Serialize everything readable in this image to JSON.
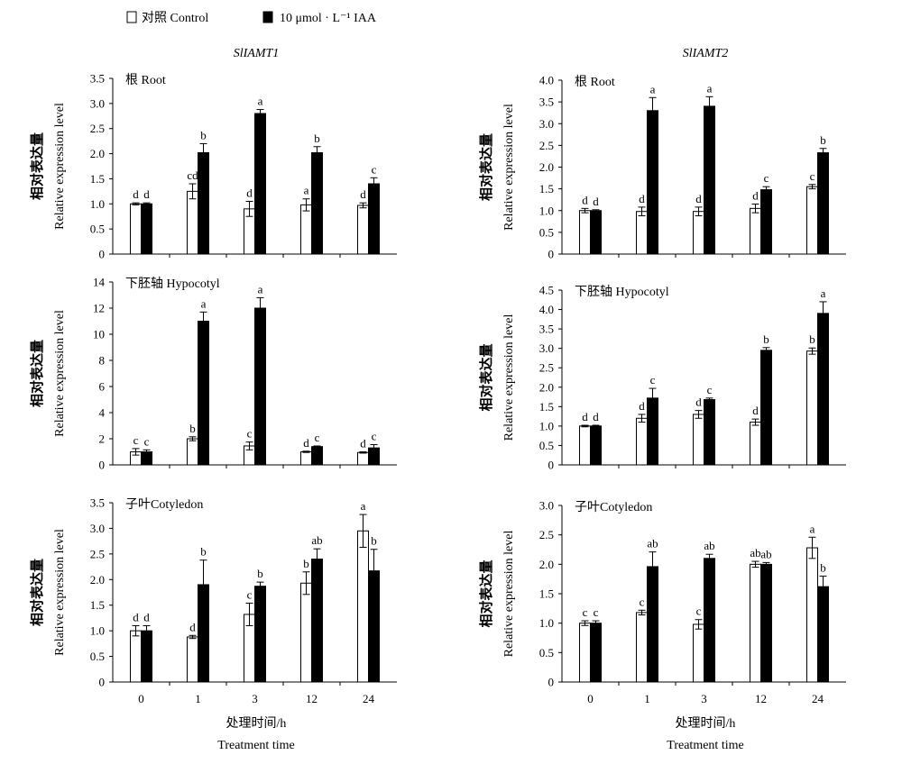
{
  "legend": [
    {
      "label": "对照 Control",
      "fill": "#ffffff"
    },
    {
      "label": "10 μmol · L⁻¹ IAA",
      "fill": "#000000"
    }
  ],
  "columns": [
    {
      "gene": "SlIAMT1"
    },
    {
      "gene": "SlIAMT2"
    }
  ],
  "ylabel_cn": "相对表达量",
  "ylabel_en": "Relative expression level",
  "xlabel_cn": "处理时间/h",
  "xlabel_en": "Treatment time",
  "colors": {
    "control": "#ffffff",
    "iaa": "#000000",
    "axis": "#000000"
  },
  "chart_data": [
    {
      "type": "bar",
      "gene": "SlIAMT1",
      "tissue": "根 Root",
      "categories": [
        "0",
        "1",
        "3",
        "12",
        "24"
      ],
      "ylim": [
        0,
        3.5
      ],
      "yticks": [
        "0",
        "0.5",
        "1.0",
        "1.5",
        "2.0",
        "2.5",
        "3.0",
        "3.5"
      ],
      "series": [
        {
          "name": "对照 Control",
          "values": [
            1.0,
            1.25,
            0.9,
            0.98,
            0.97
          ],
          "errors": [
            0.02,
            0.15,
            0.15,
            0.12,
            0.05
          ],
          "labels": [
            "d",
            "cd",
            "d",
            "a",
            "d"
          ]
        },
        {
          "name": "10 μmol · L⁻¹ IAA",
          "values": [
            1.0,
            2.02,
            2.8,
            2.02,
            1.4
          ],
          "errors": [
            0.02,
            0.18,
            0.08,
            0.12,
            0.12
          ],
          "labels": [
            "d",
            "b",
            "a",
            "b",
            "c"
          ]
        }
      ]
    },
    {
      "type": "bar",
      "gene": "SlIAMT2",
      "tissue": "根 Root",
      "categories": [
        "0",
        "1",
        "3",
        "12",
        "24"
      ],
      "ylim": [
        0,
        4.0
      ],
      "yticks": [
        "0",
        "0.5",
        "1.0",
        "1.5",
        "2.0",
        "2.5",
        "3.0",
        "3.5",
        "4.0"
      ],
      "series": [
        {
          "name": "对照 Control",
          "values": [
            1.0,
            0.98,
            0.98,
            1.05,
            1.55
          ],
          "errors": [
            0.05,
            0.1,
            0.1,
            0.1,
            0.05
          ],
          "labels": [
            "d",
            "d",
            "d",
            "d",
            "c"
          ]
        },
        {
          "name": "10 μmol · L⁻¹ IAA",
          "values": [
            1.0,
            3.3,
            3.4,
            1.48,
            2.33
          ],
          "errors": [
            0.02,
            0.3,
            0.22,
            0.07,
            0.1
          ],
          "labels": [
            "d",
            "a",
            "a",
            "c",
            "b"
          ]
        }
      ]
    },
    {
      "type": "bar",
      "gene": "SlIAMT1",
      "tissue": "下胚轴 Hypocotyl",
      "categories": [
        "0",
        "1",
        "3",
        "12",
        "24"
      ],
      "ylim": [
        0,
        14
      ],
      "yticks": [
        "0",
        "2",
        "4",
        "6",
        "8",
        "10",
        "12",
        "14"
      ],
      "series": [
        {
          "name": "对照 Control",
          "values": [
            1.0,
            2.0,
            1.45,
            1.0,
            0.95
          ],
          "errors": [
            0.25,
            0.15,
            0.3,
            0.05,
            0.05
          ],
          "labels": [
            "c",
            "b",
            "c",
            "d",
            "d"
          ]
        },
        {
          "name": "10 μmol · L⁻¹ IAA",
          "values": [
            1.0,
            11.0,
            12.0,
            1.4,
            1.3
          ],
          "errors": [
            0.15,
            0.7,
            0.8,
            0.05,
            0.25
          ],
          "labels": [
            "c",
            "a",
            "a",
            "c",
            "c"
          ]
        }
      ]
    },
    {
      "type": "bar",
      "gene": "SlIAMT2",
      "tissue": "下胚轴 Hypocotyl",
      "categories": [
        "0",
        "1",
        "3",
        "12",
        "24"
      ],
      "ylim": [
        0,
        4.5
      ],
      "yticks": [
        "0",
        "0.5",
        "1.0",
        "1.5",
        "2.0",
        "2.5",
        "3.0",
        "3.5",
        "4.0",
        "4.5"
      ],
      "series": [
        {
          "name": "对照 Control",
          "values": [
            1.0,
            1.2,
            1.3,
            1.1,
            2.93
          ],
          "errors": [
            0.02,
            0.1,
            0.1,
            0.08,
            0.08
          ],
          "labels": [
            "d",
            "d",
            "d",
            "d",
            "b"
          ]
        },
        {
          "name": "10 μmol · L⁻¹ IAA",
          "values": [
            1.0,
            1.72,
            1.68,
            2.95,
            3.9
          ],
          "errors": [
            0.02,
            0.25,
            0.04,
            0.07,
            0.3
          ],
          "labels": [
            "d",
            "c",
            "c",
            "b",
            "a"
          ]
        }
      ]
    },
    {
      "type": "bar",
      "gene": "SlIAMT1",
      "tissue": "子叶Cotyledon",
      "categories": [
        "0",
        "1",
        "3",
        "12",
        "24"
      ],
      "ylim": [
        0,
        3.5
      ],
      "yticks": [
        "0",
        "0.5",
        "1.0",
        "1.5",
        "2.0",
        "2.5",
        "3.0",
        "3.5"
      ],
      "series": [
        {
          "name": "对照 Control",
          "values": [
            1.0,
            0.88,
            1.32,
            1.93,
            2.95
          ],
          "errors": [
            0.1,
            0.03,
            0.22,
            0.22,
            0.32
          ],
          "labels": [
            "d",
            "d",
            "c",
            "b",
            "a"
          ]
        },
        {
          "name": "10 μmol · L⁻¹ IAA",
          "values": [
            1.0,
            1.9,
            1.87,
            2.4,
            2.17
          ],
          "errors": [
            0.1,
            0.48,
            0.08,
            0.2,
            0.42
          ],
          "labels": [
            "d",
            "b",
            "b",
            "ab",
            "b"
          ]
        }
      ]
    },
    {
      "type": "bar",
      "gene": "SlIAMT2",
      "tissue": "子叶Cotyledon",
      "categories": [
        "0",
        "1",
        "3",
        "12",
        "24"
      ],
      "ylim": [
        0,
        3.0
      ],
      "yticks": [
        "0",
        "0.5",
        "1.0",
        "1.5",
        "2.0",
        "2.5",
        "3.0"
      ],
      "series": [
        {
          "name": "对照 Control",
          "values": [
            1.0,
            1.18,
            0.98,
            2.0,
            2.28
          ],
          "errors": [
            0.04,
            0.04,
            0.08,
            0.05,
            0.18
          ],
          "labels": [
            "c",
            "c",
            "c",
            "ab",
            "a"
          ]
        },
        {
          "name": "10 μmol · L⁻¹ IAA",
          "values": [
            1.0,
            1.96,
            2.1,
            2.0,
            1.62
          ],
          "errors": [
            0.04,
            0.25,
            0.07,
            0.03,
            0.18
          ],
          "labels": [
            "c",
            "ab",
            "ab",
            "ab",
            "b"
          ]
        }
      ]
    }
  ]
}
